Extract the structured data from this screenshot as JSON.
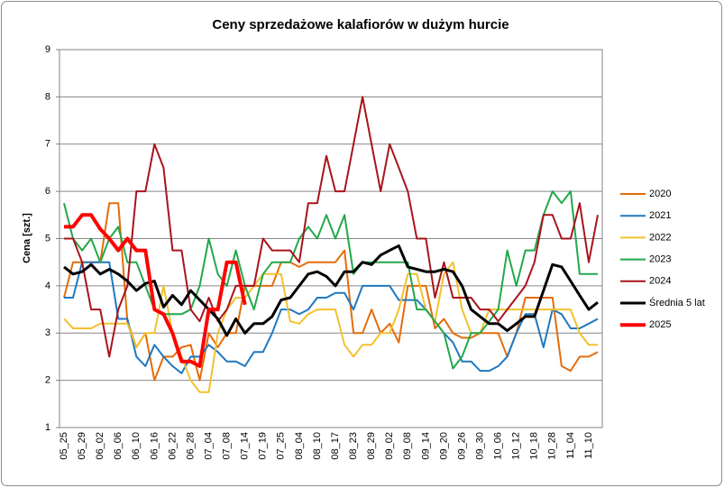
{
  "chart_data": {
    "type": "line",
    "title": "Ceny sprzedażowe kalafiorów w dużym hurcie",
    "y_label": "Cena [szt.]",
    "categories": [
      "05_25",
      null,
      "05_29",
      null,
      "06_02",
      null,
      "06_06",
      null,
      "06_10",
      null,
      "06_16",
      null,
      "06_22",
      null,
      "06_28",
      null,
      "07_04",
      null,
      "07_08",
      null,
      "07_14",
      null,
      "07_19",
      null,
      "07_25",
      null,
      "08_04",
      null,
      "08_10",
      null,
      "08_17",
      null,
      "08_23",
      null,
      "08_29",
      null,
      "09_02",
      null,
      "09_08",
      null,
      "09_14",
      null,
      "09_20",
      null,
      "09_26",
      null,
      "09_30",
      null,
      "10_06",
      null,
      "10_12",
      null,
      "10_18",
      null,
      "10_28",
      null,
      "11_04",
      null,
      "11_10",
      null
    ],
    "ylim": [
      1,
      9
    ],
    "yticks": [
      1,
      2,
      3,
      4,
      5,
      6,
      7,
      8,
      9
    ],
    "grid": true,
    "legend": "right",
    "series": [
      {
        "name": "2020",
        "color": "#e46c0a",
        "line_width": 2,
        "values": [
          3.75,
          4.5,
          4.5,
          4.5,
          4.5,
          5.75,
          5.75,
          3.25,
          2.7,
          3.0,
          2.0,
          2.5,
          2.5,
          2.7,
          2.75,
          2.0,
          3.0,
          2.7,
          3.0,
          3.0,
          4.0,
          4.0,
          4.0,
          4.0,
          4.5,
          4.5,
          4.4,
          4.5,
          4.5,
          4.5,
          4.5,
          4.75,
          3.0,
          3.0,
          3.5,
          3.0,
          3.2,
          2.8,
          4.0,
          4.0,
          4.0,
          3.1,
          3.3,
          3.0,
          2.9,
          2.9,
          3.0,
          3.0,
          3.0,
          2.5,
          3.0,
          3.75,
          3.75,
          3.75,
          3.75,
          2.3,
          2.2,
          2.5,
          2.5,
          2.6
        ]
      },
      {
        "name": "2021",
        "color": "#1f78c1",
        "line_width": 2,
        "values": [
          3.75,
          3.75,
          4.5,
          4.5,
          4.5,
          4.5,
          3.3,
          3.3,
          2.5,
          2.3,
          2.75,
          2.5,
          2.3,
          2.15,
          2.5,
          2.5,
          2.75,
          2.6,
          2.4,
          2.4,
          2.3,
          2.6,
          2.6,
          3.0,
          3.5,
          3.5,
          3.4,
          3.5,
          3.75,
          3.75,
          3.85,
          3.85,
          3.5,
          4.0,
          4.0,
          4.0,
          4.0,
          3.7,
          3.7,
          3.7,
          3.5,
          3.25,
          3.0,
          2.8,
          2.4,
          2.4,
          2.2,
          2.2,
          2.3,
          2.5,
          3.0,
          3.4,
          3.4,
          2.7,
          3.5,
          3.4,
          3.1,
          3.1,
          3.2,
          3.3
        ]
      },
      {
        "name": "2022",
        "color": "#f2c12e",
        "line_width": 2,
        "values": [
          3.3,
          3.1,
          3.1,
          3.1,
          3.2,
          3.2,
          3.2,
          3.2,
          2.7,
          3.0,
          3.0,
          4.0,
          3.0,
          2.5,
          2.0,
          1.75,
          1.75,
          3.0,
          3.5,
          3.75,
          3.75,
          4.0,
          4.25,
          4.25,
          4.25,
          3.25,
          3.2,
          3.4,
          3.5,
          3.5,
          3.5,
          2.75,
          2.5,
          2.75,
          2.75,
          3.0,
          3.0,
          3.5,
          4.25,
          4.25,
          3.5,
          3.25,
          4.25,
          4.5,
          3.5,
          3.0,
          3.0,
          3.5,
          3.5,
          3.5,
          3.5,
          3.5,
          3.5,
          3.5,
          3.5,
          3.5,
          3.5,
          3.0,
          2.75,
          2.75
        ]
      },
      {
        "name": "2023",
        "color": "#22a84a",
        "line_width": 2,
        "values": [
          5.75,
          5.0,
          4.75,
          5.0,
          4.5,
          5.0,
          5.25,
          4.5,
          4.5,
          4.0,
          3.5,
          3.4,
          3.4,
          3.4,
          3.5,
          4.0,
          5.0,
          4.25,
          4.0,
          4.75,
          4.0,
          3.5,
          4.25,
          4.5,
          4.5,
          4.5,
          5.0,
          5.25,
          5.0,
          5.5,
          5.0,
          5.5,
          4.25,
          4.5,
          4.5,
          4.5,
          4.5,
          4.5,
          4.5,
          3.5,
          3.5,
          3.25,
          3.0,
          2.25,
          2.5,
          3.0,
          3.0,
          3.25,
          3.5,
          4.75,
          4.0,
          4.75,
          4.75,
          5.5,
          6.0,
          5.75,
          6.0,
          4.25,
          4.25,
          4.25
        ]
      },
      {
        "name": "2024",
        "color": "#a8141c",
        "line_width": 2,
        "values": [
          5.0,
          5.0,
          4.5,
          3.5,
          3.5,
          2.5,
          3.5,
          4.0,
          6.0,
          6.0,
          7.0,
          6.5,
          4.75,
          4.75,
          3.5,
          3.25,
          3.75,
          3.25,
          3.5,
          4.0,
          4.0,
          4.0,
          5.0,
          4.75,
          4.75,
          4.75,
          4.5,
          5.75,
          5.75,
          6.75,
          6.0,
          6.0,
          7.0,
          8.0,
          7.0,
          6.0,
          7.0,
          6.5,
          6.0,
          5.0,
          5.0,
          3.75,
          4.5,
          3.75,
          3.75,
          3.75,
          3.5,
          3.5,
          3.25,
          3.5,
          3.75,
          4.0,
          4.5,
          5.5,
          5.5,
          5.0,
          5.0,
          5.75,
          4.5,
          5.5
        ]
      },
      {
        "name": "Średnia 5 lat",
        "color": "#000000",
        "line_width": 3,
        "values": [
          4.4,
          4.25,
          4.3,
          4.45,
          4.25,
          4.35,
          4.25,
          4.1,
          3.9,
          4.05,
          4.1,
          3.55,
          3.8,
          3.6,
          3.9,
          3.7,
          3.5,
          3.3,
          2.95,
          3.3,
          3.0,
          3.2,
          3.2,
          3.35,
          3.7,
          3.75,
          4.0,
          4.25,
          4.3,
          4.2,
          4.0,
          4.3,
          4.3,
          4.5,
          4.45,
          4.65,
          4.75,
          4.85,
          4.4,
          4.35,
          4.3,
          4.3,
          4.35,
          4.3,
          4.0,
          3.5,
          3.35,
          3.2,
          3.2,
          3.05,
          3.2,
          3.35,
          3.35,
          3.9,
          4.45,
          4.4,
          4.1,
          3.8,
          3.5,
          3.65
        ]
      },
      {
        "name": "2025",
        "color": "#ff0000",
        "line_width": 4,
        "values": [
          5.25,
          5.25,
          5.5,
          5.5,
          5.2,
          5.0,
          4.75,
          5.0,
          4.75,
          4.75,
          3.5,
          3.4,
          3.0,
          2.4,
          2.4,
          2.3,
          3.5,
          3.5,
          4.5,
          4.5,
          3.6,
          null,
          null,
          null,
          null,
          null,
          null,
          null,
          null,
          null,
          null,
          null,
          null,
          null,
          null,
          null,
          null,
          null,
          null,
          null,
          null,
          null,
          null,
          null,
          null,
          null,
          null,
          null,
          null,
          null,
          null,
          null,
          null,
          null,
          null,
          null,
          null,
          null,
          null,
          null
        ]
      }
    ]
  }
}
